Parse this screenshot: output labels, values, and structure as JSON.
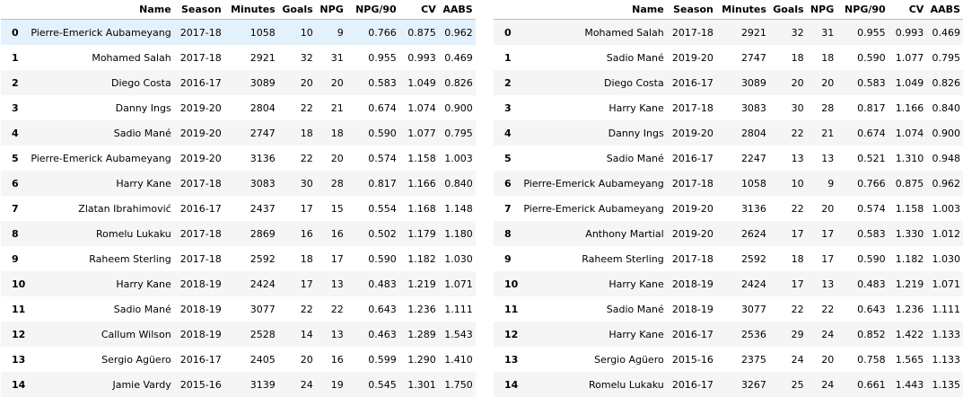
{
  "columns": [
    "",
    "Name",
    "Season",
    "Minutes",
    "Goals",
    "NPG",
    "NPG/90",
    "CV",
    "AABS"
  ],
  "left_table": {
    "rows": [
      [
        "0",
        "Pierre-Emerick Aubameyang",
        "2017-18",
        "1058",
        "10",
        "9",
        "0.766",
        "0.875",
        "0.962"
      ],
      [
        "1",
        "Mohamed Salah",
        "2017-18",
        "2921",
        "32",
        "31",
        "0.955",
        "0.993",
        "0.469"
      ],
      [
        "2",
        "Diego Costa",
        "2016-17",
        "3089",
        "20",
        "20",
        "0.583",
        "1.049",
        "0.826"
      ],
      [
        "3",
        "Danny Ings",
        "2019-20",
        "2804",
        "22",
        "21",
        "0.674",
        "1.074",
        "0.900"
      ],
      [
        "4",
        "Sadio Mané",
        "2019-20",
        "2747",
        "18",
        "18",
        "0.590",
        "1.077",
        "0.795"
      ],
      [
        "5",
        "Pierre-Emerick Aubameyang",
        "2019-20",
        "3136",
        "22",
        "20",
        "0.574",
        "1.158",
        "1.003"
      ],
      [
        "6",
        "Harry Kane",
        "2017-18",
        "3083",
        "30",
        "28",
        "0.817",
        "1.166",
        "0.840"
      ],
      [
        "7",
        "Zlatan Ibrahimović",
        "2016-17",
        "2437",
        "17",
        "15",
        "0.554",
        "1.168",
        "1.148"
      ],
      [
        "8",
        "Romelu Lukaku",
        "2017-18",
        "2869",
        "16",
        "16",
        "0.502",
        "1.179",
        "1.180"
      ],
      [
        "9",
        "Raheem Sterling",
        "2017-18",
        "2592",
        "18",
        "17",
        "0.590",
        "1.182",
        "1.030"
      ],
      [
        "10",
        "Harry Kane",
        "2018-19",
        "2424",
        "17",
        "13",
        "0.483",
        "1.219",
        "1.071"
      ],
      [
        "11",
        "Sadio Mané",
        "2018-19",
        "3077",
        "22",
        "22",
        "0.643",
        "1.236",
        "1.111"
      ],
      [
        "12",
        "Callum Wilson",
        "2018-19",
        "2528",
        "14",
        "13",
        "0.463",
        "1.289",
        "1.543"
      ],
      [
        "13",
        "Sergio Agüero",
        "2016-17",
        "2405",
        "20",
        "16",
        "0.599",
        "1.290",
        "1.410"
      ],
      [
        "14",
        "Jamie Vardy",
        "2015-16",
        "3139",
        "24",
        "19",
        "0.545",
        "1.301",
        "1.750"
      ]
    ]
  },
  "right_table": {
    "rows": [
      [
        "0",
        "Mohamed Salah",
        "2017-18",
        "2921",
        "32",
        "31",
        "0.955",
        "0.993",
        "0.469"
      ],
      [
        "1",
        "Sadio Mané",
        "2019-20",
        "2747",
        "18",
        "18",
        "0.590",
        "1.077",
        "0.795"
      ],
      [
        "2",
        "Diego Costa",
        "2016-17",
        "3089",
        "20",
        "20",
        "0.583",
        "1.049",
        "0.826"
      ],
      [
        "3",
        "Harry Kane",
        "2017-18",
        "3083",
        "30",
        "28",
        "0.817",
        "1.166",
        "0.840"
      ],
      [
        "4",
        "Danny Ings",
        "2019-20",
        "2804",
        "22",
        "21",
        "0.674",
        "1.074",
        "0.900"
      ],
      [
        "5",
        "Sadio Mané",
        "2016-17",
        "2247",
        "13",
        "13",
        "0.521",
        "1.310",
        "0.948"
      ],
      [
        "6",
        "Pierre-Emerick Aubameyang",
        "2017-18",
        "1058",
        "10",
        "9",
        "0.766",
        "0.875",
        "0.962"
      ],
      [
        "7",
        "Pierre-Emerick Aubameyang",
        "2019-20",
        "3136",
        "22",
        "20",
        "0.574",
        "1.158",
        "1.003"
      ],
      [
        "8",
        "Anthony Martial",
        "2019-20",
        "2624",
        "17",
        "17",
        "0.583",
        "1.330",
        "1.012"
      ],
      [
        "9",
        "Raheem Sterling",
        "2017-18",
        "2592",
        "18",
        "17",
        "0.590",
        "1.182",
        "1.030"
      ],
      [
        "10",
        "Harry Kane",
        "2018-19",
        "2424",
        "17",
        "13",
        "0.483",
        "1.219",
        "1.071"
      ],
      [
        "11",
        "Sadio Mané",
        "2018-19",
        "3077",
        "22",
        "22",
        "0.643",
        "1.236",
        "1.111"
      ],
      [
        "12",
        "Harry Kane",
        "2016-17",
        "2536",
        "29",
        "24",
        "0.852",
        "1.422",
        "1.133"
      ],
      [
        "13",
        "Sergio Agüero",
        "2015-16",
        "2375",
        "24",
        "20",
        "0.758",
        "1.565",
        "1.133"
      ],
      [
        "14",
        "Romelu Lukaku",
        "2016-17",
        "3267",
        "25",
        "24",
        "0.661",
        "1.443",
        "1.135"
      ]
    ]
  },
  "colors": {
    "stripe": "#f5f5f5",
    "hover_highlight": "#e2f1fb",
    "header_border": "#bdbdbd"
  }
}
